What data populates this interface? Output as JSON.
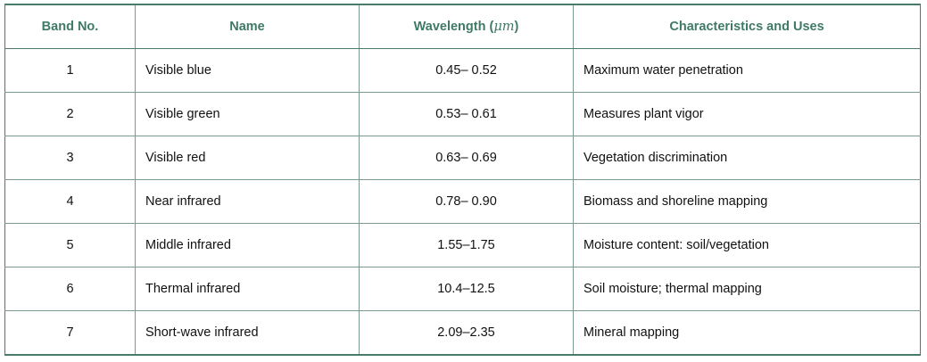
{
  "table": {
    "headers": {
      "band_no": "Band No.",
      "name": "Name",
      "wavelength_prefix": "Wavelength (",
      "wavelength_unit": "μm",
      "wavelength_suffix": ")",
      "characteristics": "Characteristics and Uses"
    },
    "rows": [
      {
        "band": "1",
        "name": "Visible blue",
        "wavelength": "0.45– 0.52",
        "uses": "Maximum water penetration"
      },
      {
        "band": "2",
        "name": "Visible green",
        "wavelength": "0.53– 0.61",
        "uses": "Measures plant vigor"
      },
      {
        "band": "3",
        "name": "Visible red",
        "wavelength": "0.63– 0.69",
        "uses": "Vegetation discrimination"
      },
      {
        "band": "4",
        "name": "Near infrared",
        "wavelength": "0.78– 0.90",
        "uses": "Biomass and shoreline mapping"
      },
      {
        "band": "5",
        "name": "Middle infrared",
        "wavelength": "1.55–1.75",
        "uses": "Moisture content: soil/vegetation"
      },
      {
        "band": "6",
        "name": "Thermal infrared",
        "wavelength": "10.4–12.5",
        "uses": "Soil moisture; thermal mapping"
      },
      {
        "band": "7",
        "name": "Short-wave infrared",
        "wavelength": "2.09–2.35",
        "uses": "Mineral mapping"
      }
    ]
  },
  "colors": {
    "header_text": "#3f7a66",
    "rule": "#4a7a6a",
    "grid": "#7a9c90",
    "body_text": "#111111"
  }
}
